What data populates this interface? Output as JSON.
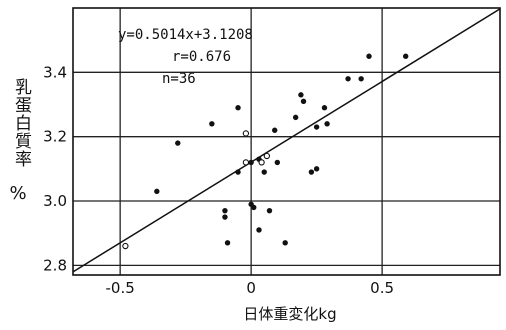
{
  "chart_data": {
    "type": "scatter",
    "xlabel": "日体重変化kg",
    "ylabel": "乳蛋白質率",
    "ylabel_unit": "%",
    "xlim": [
      -0.68,
      0.95
    ],
    "ylim": [
      2.77,
      3.6
    ],
    "x_ticks": [
      -0.5,
      0,
      0.5
    ],
    "x_tick_labels": [
      "-0.5",
      "0",
      "0.5"
    ],
    "y_ticks": [
      2.8,
      3.0,
      3.2,
      3.4
    ],
    "y_tick_labels": [
      "2.8",
      "3.0",
      "3.2",
      "3.4"
    ],
    "grid": true,
    "annotations": [
      "y=0.5014x+3.1208",
      "r=0.676",
      "n=36"
    ],
    "regression": {
      "slope": 0.5014,
      "intercept": 3.1208
    },
    "series": [
      {
        "marker": "filled",
        "points": [
          [
            -0.48,
            2.86
          ],
          [
            -0.36,
            3.03
          ],
          [
            -0.28,
            3.18
          ],
          [
            -0.15,
            3.24
          ],
          [
            -0.1,
            2.97
          ],
          [
            -0.1,
            2.95
          ],
          [
            -0.09,
            2.87
          ],
          [
            -0.05,
            3.29
          ],
          [
            -0.05,
            3.09
          ],
          [
            0.0,
            3.12
          ],
          [
            0.0,
            2.99
          ],
          [
            0.01,
            2.98
          ],
          [
            0.03,
            3.13
          ],
          [
            0.03,
            2.91
          ],
          [
            0.05,
            3.09
          ],
          [
            0.07,
            2.97
          ],
          [
            0.09,
            3.22
          ],
          [
            0.1,
            3.12
          ],
          [
            0.13,
            2.87
          ],
          [
            0.17,
            3.26
          ],
          [
            0.19,
            3.33
          ],
          [
            0.2,
            3.31
          ],
          [
            0.23,
            3.09
          ],
          [
            0.25,
            3.1
          ],
          [
            0.25,
            3.23
          ],
          [
            0.28,
            3.29
          ],
          [
            0.29,
            3.24
          ],
          [
            0.37,
            3.38
          ],
          [
            0.42,
            3.38
          ],
          [
            0.45,
            3.45
          ],
          [
            0.59,
            3.45
          ]
        ]
      },
      {
        "marker": "open",
        "points": [
          [
            -0.48,
            2.86
          ],
          [
            -0.02,
            3.21
          ],
          [
            -0.02,
            3.12
          ],
          [
            0.04,
            3.12
          ],
          [
            0.06,
            3.14
          ]
        ]
      }
    ]
  }
}
